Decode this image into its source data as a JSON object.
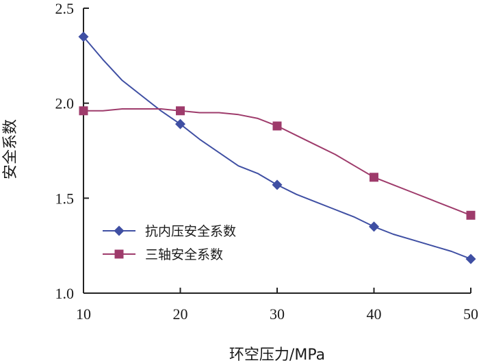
{
  "chart_data": {
    "type": "line",
    "title": "",
    "xlabel": "环空压力/MPa",
    "ylabel": "安全系数",
    "xlim": [
      10,
      50
    ],
    "ylim": [
      1.0,
      2.5
    ],
    "xticks": [
      10,
      20,
      30,
      40,
      50
    ],
    "yticks": [
      1.0,
      1.5,
      2.0,
      2.5
    ],
    "xtick_labels": [
      "10",
      "20",
      "30",
      "40",
      "50"
    ],
    "ytick_labels": [
      "1.0",
      "1.5",
      "2.0",
      "2.5"
    ],
    "grid": false,
    "legend_position": "lower-left",
    "series": [
      {
        "name": "抗内压安全系数",
        "color": "#3F4FA3",
        "marker": "diamond",
        "x": [
          10,
          20,
          30,
          40,
          50
        ],
        "y": [
          2.35,
          1.89,
          1.57,
          1.35,
          1.18
        ],
        "curve_x": [
          10,
          12,
          14,
          16,
          18,
          20,
          22,
          24,
          26,
          28,
          30,
          32,
          34,
          36,
          38,
          40,
          42,
          44,
          46,
          48,
          50
        ],
        "curve_y": [
          2.35,
          2.23,
          2.12,
          2.04,
          1.96,
          1.89,
          1.81,
          1.74,
          1.67,
          1.63,
          1.57,
          1.52,
          1.48,
          1.44,
          1.4,
          1.35,
          1.31,
          1.28,
          1.25,
          1.22,
          1.18
        ]
      },
      {
        "name": "三轴安全系数",
        "color": "#9E3B6B",
        "marker": "square",
        "x": [
          10,
          20,
          30,
          40,
          50
        ],
        "y": [
          1.96,
          1.96,
          1.88,
          1.61,
          1.41
        ],
        "curve_x": [
          10,
          12,
          14,
          16,
          18,
          20,
          22,
          24,
          26,
          28,
          30,
          32,
          34,
          36,
          38,
          40,
          42,
          44,
          46,
          48,
          50
        ],
        "curve_y": [
          1.96,
          1.96,
          1.97,
          1.97,
          1.97,
          1.96,
          1.95,
          1.95,
          1.94,
          1.92,
          1.88,
          1.83,
          1.78,
          1.73,
          1.67,
          1.61,
          1.57,
          1.53,
          1.49,
          1.45,
          1.41
        ]
      }
    ]
  }
}
